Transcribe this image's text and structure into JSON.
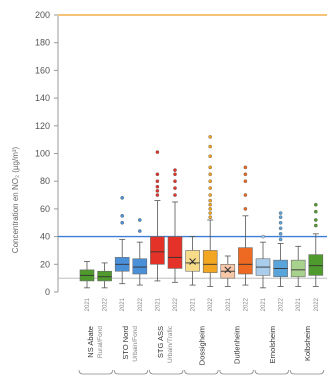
{
  "chart_data": {
    "type": "box",
    "ylabel": "Concentration en NO₂ (µg/m³)",
    "ylim": [
      0,
      200
    ],
    "yticks": [
      0,
      20,
      40,
      60,
      80,
      100,
      120,
      140,
      160,
      180,
      200
    ],
    "reference_lines": [
      {
        "value": 40,
        "color": "#3b7dd8"
      },
      {
        "value": 10,
        "color": "#b5b5b5"
      }
    ],
    "groups": [
      {
        "name": "NS Abate",
        "subtitle": "Rural/Fond",
        "x_from": 0,
        "x_to": 1
      },
      {
        "name": "STO Nord",
        "subtitle": "Urbain/Fond",
        "x_from": 2,
        "x_to": 3
      },
      {
        "name": "STG ASS",
        "subtitle": "Urbain/Trafic",
        "x_from": 4,
        "x_to": 5
      },
      {
        "name": "Dossigheim",
        "subtitle": "",
        "x_from": 6,
        "x_to": 7
      },
      {
        "name": "Dutlenheim",
        "subtitle": "",
        "x_from": 8,
        "x_to": 9
      },
      {
        "name": "Ernolsheim",
        "subtitle": "",
        "x_from": 10,
        "x_to": 11
      },
      {
        "name": "Kolbsheim",
        "subtitle": "",
        "x_from": 12,
        "x_to": 13
      }
    ],
    "boxes": [
      {
        "label": "2021",
        "q1": 8,
        "median": 12,
        "q3": 16,
        "whisker_low": 3,
        "whisker_high": 22,
        "mean": null,
        "outliers": [],
        "color": "#4e9a2d"
      },
      {
        "label": "2022",
        "q1": 8,
        "median": 11,
        "q3": 15,
        "whisker_low": 3,
        "whisker_high": 21,
        "mean": null,
        "outliers": [],
        "color": "#4e9a2d"
      },
      {
        "label": "2021",
        "q1": 15,
        "median": 20,
        "q3": 25,
        "whisker_low": 6,
        "whisker_high": 38,
        "mean": null,
        "outliers": [
          50,
          55,
          68
        ],
        "color": "#4a90d9"
      },
      {
        "label": "2022",
        "q1": 13,
        "median": 18,
        "q3": 24,
        "whisker_low": 5,
        "whisker_high": 36,
        "mean": null,
        "outliers": [
          44,
          52
        ],
        "color": "#4a90d9"
      },
      {
        "label": "2021",
        "q1": 20,
        "median": 29,
        "q3": 40,
        "whisker_low": 8,
        "whisker_high": 66,
        "mean": null,
        "outliers": [
          70,
          73,
          76,
          80,
          85,
          101
        ],
        "color": "#e53228"
      },
      {
        "label": "2022",
        "q1": 17,
        "median": 25,
        "q3": 40,
        "whisker_low": 7,
        "whisker_high": 65,
        "mean": null,
        "outliers": [
          70,
          75,
          80,
          85,
          88
        ],
        "color": "#e53228"
      },
      {
        "label": "2021",
        "q1": 15,
        "median": 21,
        "q3": 30,
        "whisker_low": 5,
        "whisker_high": 40,
        "mean": 22,
        "outliers": [],
        "color": "#f7dc8a"
      },
      {
        "label": "2022",
        "q1": 14,
        "median": 20,
        "q3": 30,
        "whisker_low": 4,
        "whisker_high": 52,
        "mean": null,
        "outliers": [
          54,
          57,
          60,
          63,
          66,
          70,
          75,
          80,
          85,
          90,
          98,
          105,
          112
        ],
        "color": "#f3a621"
      },
      {
        "label": "2021",
        "q1": 10,
        "median": 15,
        "q3": 20,
        "whisker_low": 4,
        "whisker_high": 26,
        "mean": 16,
        "outliers": [],
        "color": "#f8c7a8"
      },
      {
        "label": "2022",
        "q1": 13,
        "median": 20,
        "q3": 32,
        "whisker_low": 5,
        "whisker_high": 55,
        "mean": null,
        "outliers": [
          60,
          70,
          80,
          85,
          90
        ],
        "color": "#ee6a22"
      },
      {
        "label": "2021",
        "q1": 12,
        "median": 18,
        "q3": 24,
        "whisker_low": 3,
        "whisker_high": 36,
        "mean": null,
        "outliers": [
          40
        ],
        "color": "#a9cdeb"
      },
      {
        "label": "2022",
        "q1": 11,
        "median": 17,
        "q3": 23,
        "whisker_low": 4,
        "whisker_high": 35,
        "mean": null,
        "outliers": [
          38,
          42,
          46,
          50,
          54,
          57
        ],
        "color": "#5aa4dc"
      },
      {
        "label": "2021",
        "q1": 11,
        "median": 16,
        "q3": 23,
        "whisker_low": 4,
        "whisker_high": 33,
        "mean": null,
        "outliers": [],
        "color": "#a9d18e"
      },
      {
        "label": "2022",
        "q1": 12,
        "median": 19,
        "q3": 27,
        "whisker_low": 4,
        "whisker_high": 42,
        "mean": null,
        "outliers": [
          48,
          52,
          58,
          63
        ],
        "color": "#4e9a2d"
      }
    ]
  }
}
